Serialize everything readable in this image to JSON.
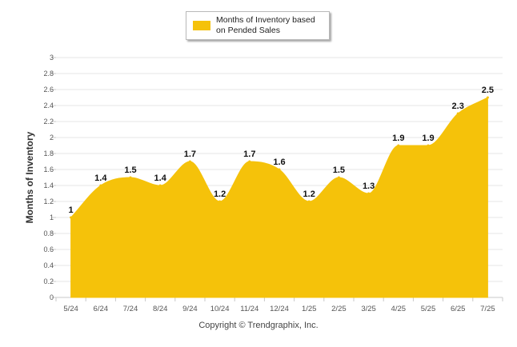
{
  "chart_data": {
    "type": "area",
    "categories": [
      "5/24",
      "6/24",
      "7/24",
      "8/24",
      "9/24",
      "10/24",
      "11/24",
      "12/24",
      "1/25",
      "2/25",
      "3/25",
      "4/25",
      "5/25",
      "6/25",
      "7/25"
    ],
    "series": [
      {
        "name": "Months of Inventory based on Pended Sales",
        "values": [
          1,
          1.4,
          1.5,
          1.4,
          1.7,
          1.2,
          1.7,
          1.6,
          1.2,
          1.5,
          1.3,
          1.9,
          1.9,
          2.3,
          2.5
        ],
        "data_labels": [
          "1",
          "1.4",
          "1.5",
          "1.4",
          "1.7",
          "1.2",
          "1.7",
          "1.6",
          "1.2",
          "1.5",
          "1.3",
          "1.9",
          "1.9",
          "2.3",
          "2.5"
        ]
      }
    ],
    "xlabel": "",
    "ylabel": "Months of Inventory",
    "ylim": [
      0,
      3
    ],
    "yticks": [
      "0",
      "0.2",
      "0.4",
      "0.6",
      "0.8",
      "1",
      "1.2",
      "1.4",
      "1.6",
      "1.8",
      "2",
      "2.2",
      "2.4",
      "2.6",
      "2.8",
      "3"
    ],
    "grid": true,
    "legend_position": "top-center",
    "curve": "smooth"
  },
  "legend": {
    "label_line1": "Months of Inventory based",
    "label_line2": "on Pended Sales"
  },
  "footer": {
    "copyright": "Copyright © Trendgraphix, Inc."
  },
  "colors": {
    "series": "#f5c20a",
    "grid": "#e6e6e6",
    "axis_text": "#555555",
    "label_text": "#111111"
  }
}
